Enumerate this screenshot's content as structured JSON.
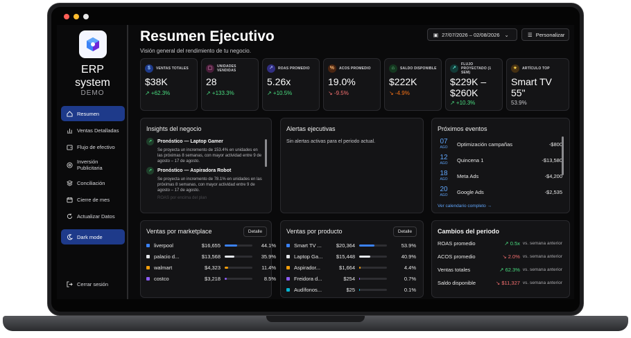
{
  "brand": {
    "line1": "ERP",
    "line2": "system",
    "demo": "DEMO"
  },
  "nav": [
    {
      "label": "Resumen",
      "icon": "home-icon",
      "active": true
    },
    {
      "label": "Ventas Detalladas",
      "icon": "bar-chart-icon"
    },
    {
      "label": "Flujo de efectivo",
      "icon": "wallet-icon"
    },
    {
      "label": "Inversión Publicitaria",
      "icon": "target-icon"
    },
    {
      "label": "Conciliación",
      "icon": "layers-icon"
    },
    {
      "label": "Cierre de mes",
      "icon": "calendar-icon"
    },
    {
      "label": "Actualizar Datos",
      "icon": "refresh-icon"
    }
  ],
  "dark_mode": "Dark mode",
  "logout": "Cerrar sesión",
  "header": {
    "title": "Resumen Ejecutivo",
    "subtitle": "Visión general del rendimiento de tu negocio.",
    "date_range": "27/07/2026 – 02/08/2026",
    "customize": "Personalizar"
  },
  "kpis": [
    {
      "label": "VENTAS TOTALES",
      "value": "$38K",
      "delta": "↗ +62.3%",
      "trend": "up",
      "color": "#3b82f6"
    },
    {
      "label": "UNIDADES VENDIDAS",
      "value": "28",
      "delta": "↗ +133.3%",
      "trend": "up",
      "color": "#ec4899"
    },
    {
      "label": "ROAS PROMEDIO",
      "value": "5.26x",
      "delta": "↗ +10.5%",
      "trend": "up",
      "color": "#6366f1"
    },
    {
      "label": "ACOS PROMEDIO",
      "value": "19.0%",
      "delta": "↘ -9.5%",
      "trend": "down",
      "color": "#f97316"
    },
    {
      "label": "SALDO DISPONIBLE",
      "value": "$222K",
      "delta": "↘ -4.9%",
      "trend": "down",
      "color": "#22c55e"
    },
    {
      "label": "FLUJO PROYECTADO (1 SEM)",
      "value": "$229K – $260K",
      "delta": "↗ +10.3%",
      "trend": "up",
      "color": "#14b8a6"
    },
    {
      "label": "ARTÍCULO TOP",
      "value": "Smart TV 55\"",
      "delta": "53.9%",
      "trend": "neutral",
      "color": "#f59e0b"
    }
  ],
  "insights": {
    "title": "Insights del negocio",
    "items": [
      {
        "head": "Pronóstico — Laptop Gamer",
        "body": "Se proyecta un incremento de 153.4% en unidades en las próximas 8 semanas, con mayor actividad entre 9 de agosto – 17 de agosto."
      },
      {
        "head": "Pronóstico — Aspiradora Robot",
        "body": "Se proyecta un incremento de 78.1% en unidades en las próximas 8 semanas, con mayor actividad entre 9 de agosto – 17 de agosto."
      }
    ],
    "faded": "ROAS por encima del plan"
  },
  "alerts": {
    "title": "Alertas ejecutivas",
    "message": "Sin alertas activas para el periodo actual."
  },
  "events": {
    "title": "Próximos eventos",
    "items": [
      {
        "day": "07",
        "month": "AGO",
        "name": "Optimización campañas",
        "amount": "-$800"
      },
      {
        "day": "12",
        "month": "AGO",
        "name": "Quincena 1",
        "amount": "-$13,580"
      },
      {
        "day": "18",
        "month": "AGO",
        "name": "Meta Ads",
        "amount": "-$4,200"
      },
      {
        "day": "20",
        "month": "AGO",
        "name": "Google Ads",
        "amount": "-$2,535"
      }
    ],
    "link": "Ver calendario completo →"
  },
  "marketplace": {
    "title": "Ventas por marketplace",
    "detail": "Detalle",
    "rows": [
      {
        "name": "liverpool",
        "amount": "$16,655",
        "pct": "44.1%",
        "share": 0.441,
        "color": "#3b82f6"
      },
      {
        "name": "palacio d...",
        "amount": "$13,568",
        "pct": "35.9%",
        "share": 0.359,
        "color": "#e5e7eb"
      },
      {
        "name": "walmart",
        "amount": "$4,323",
        "pct": "11.4%",
        "share": 0.114,
        "color": "#f59e0b"
      },
      {
        "name": "costco",
        "amount": "$3,218",
        "pct": "8.5%",
        "share": 0.085,
        "color": "#8b5cf6"
      }
    ]
  },
  "products": {
    "title": "Ventas por producto",
    "detail": "Detalle",
    "rows": [
      {
        "name": "Smart TV ...",
        "amount": "$20,364",
        "pct": "53.9%",
        "share": 0.539,
        "color": "#3b82f6"
      },
      {
        "name": "Laptop Ga...",
        "amount": "$15,448",
        "pct": "40.9%",
        "share": 0.409,
        "color": "#e5e7eb"
      },
      {
        "name": "Aspirador...",
        "amount": "$1,664",
        "pct": "4.4%",
        "share": 0.044,
        "color": "#f59e0b"
      },
      {
        "name": "Freidora d...",
        "amount": "$254",
        "pct": "0.7%",
        "share": 0.007,
        "color": "#8b5cf6"
      },
      {
        "name": "Audífonos...",
        "amount": "$25",
        "pct": "0.1%",
        "share": 0.001,
        "color": "#06b6d4"
      }
    ]
  },
  "changes": {
    "title": "Cambios del periodo",
    "rows": [
      {
        "label": "ROAS promedio",
        "delta": "↗ 0.5x",
        "trend": "up",
        "vs": "vs. semana anterior"
      },
      {
        "label": "ACOS promedio",
        "delta": "↘ 2.0%",
        "trend": "down",
        "vs": "vs. semana anterior"
      },
      {
        "label": "Ventas totales",
        "delta": "↗ 62.3%",
        "trend": "up",
        "vs": "vs. semana anterior"
      },
      {
        "label": "Saldo disponible",
        "delta": "↘ $11,327",
        "trend": "down",
        "vs": "vs. semana anterior"
      }
    ]
  }
}
